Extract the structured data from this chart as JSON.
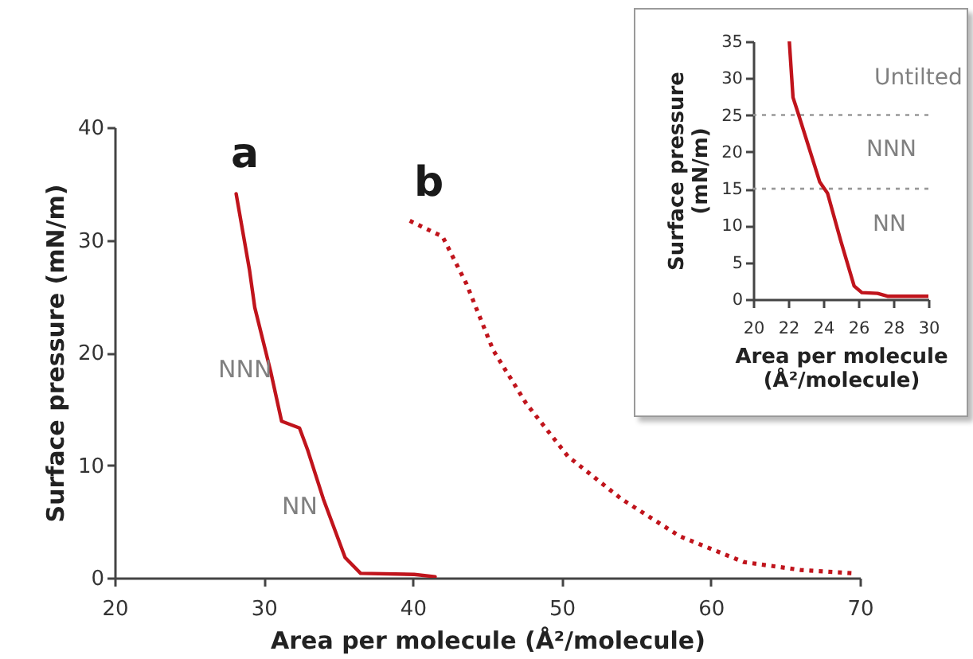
{
  "chart_data": [
    {
      "type": "line",
      "xlabel": "Area per molecule (Å²/molecule)",
      "ylabel": "Surface pressure (mN/m)",
      "xlim": [
        20,
        70
      ],
      "xticks": [
        20,
        30,
        40,
        50,
        60,
        70
      ],
      "ylim": [
        0,
        40
      ],
      "yticks": [
        0,
        10,
        20,
        30,
        40
      ],
      "grid": false,
      "series": [
        {
          "color": "#c0141c",
          "line_style": "solid",
          "x": [
            28.15,
            29.05,
            29.4,
            30.47,
            31.2,
            32.4,
            32.96,
            34.0,
            35.46,
            36.5,
            40.1,
            41.5
          ],
          "values": [
            34.1,
            27.3,
            24,
            18.3,
            13.9,
            13.3,
            11.3,
            7.0,
            1.8,
            0.4,
            0.3,
            0.1
          ]
        },
        {
          "color": "#c0141c",
          "line_style": "dotted",
          "x": [
            39.8,
            42.0,
            43.6,
            45.4,
            47.6,
            50.4,
            54,
            57.9,
            62.2,
            66,
            69.6
          ],
          "values": [
            31.7,
            30.3,
            26.1,
            20.2,
            15.5,
            10.8,
            7.0,
            3.7,
            1.4,
            0.7,
            0.4
          ]
        }
      ],
      "annotations": [
        "a",
        "b",
        "NNN",
        "NN"
      ]
    },
    {
      "type": "line",
      "xlabel": "Area per molecule\n(Å²/molecule)",
      "ylabel": "Surface pressure\n(mN/m)",
      "xlim": [
        20,
        30
      ],
      "xticks": [
        20,
        22,
        24,
        26,
        28,
        30
      ],
      "ylim": [
        0,
        35
      ],
      "yticks": [
        0,
        5,
        10,
        15,
        20,
        25,
        30,
        35
      ],
      "grid": false,
      "series": [
        {
          "color": "#c0141c",
          "line_style": "solid",
          "x": [
            22.06,
            22.27,
            22.57,
            23.8,
            24.24,
            25.0,
            25.76,
            26.2,
            27.1,
            27.7,
            30
          ],
          "values": [
            35,
            27.4,
            25.2,
            15.9,
            14.4,
            7.9,
            1.8,
            0.9,
            0.8,
            0.4,
            0.4
          ]
        }
      ],
      "ref_lines": [
        {
          "axis": "y",
          "value": 25,
          "color": "#999999",
          "line_style": "dotted"
        },
        {
          "axis": "y",
          "value": 15,
          "color": "#999999",
          "line_style": "dotted"
        }
      ],
      "annotations": [
        "Untilted",
        "NNN",
        "NN"
      ]
    }
  ]
}
